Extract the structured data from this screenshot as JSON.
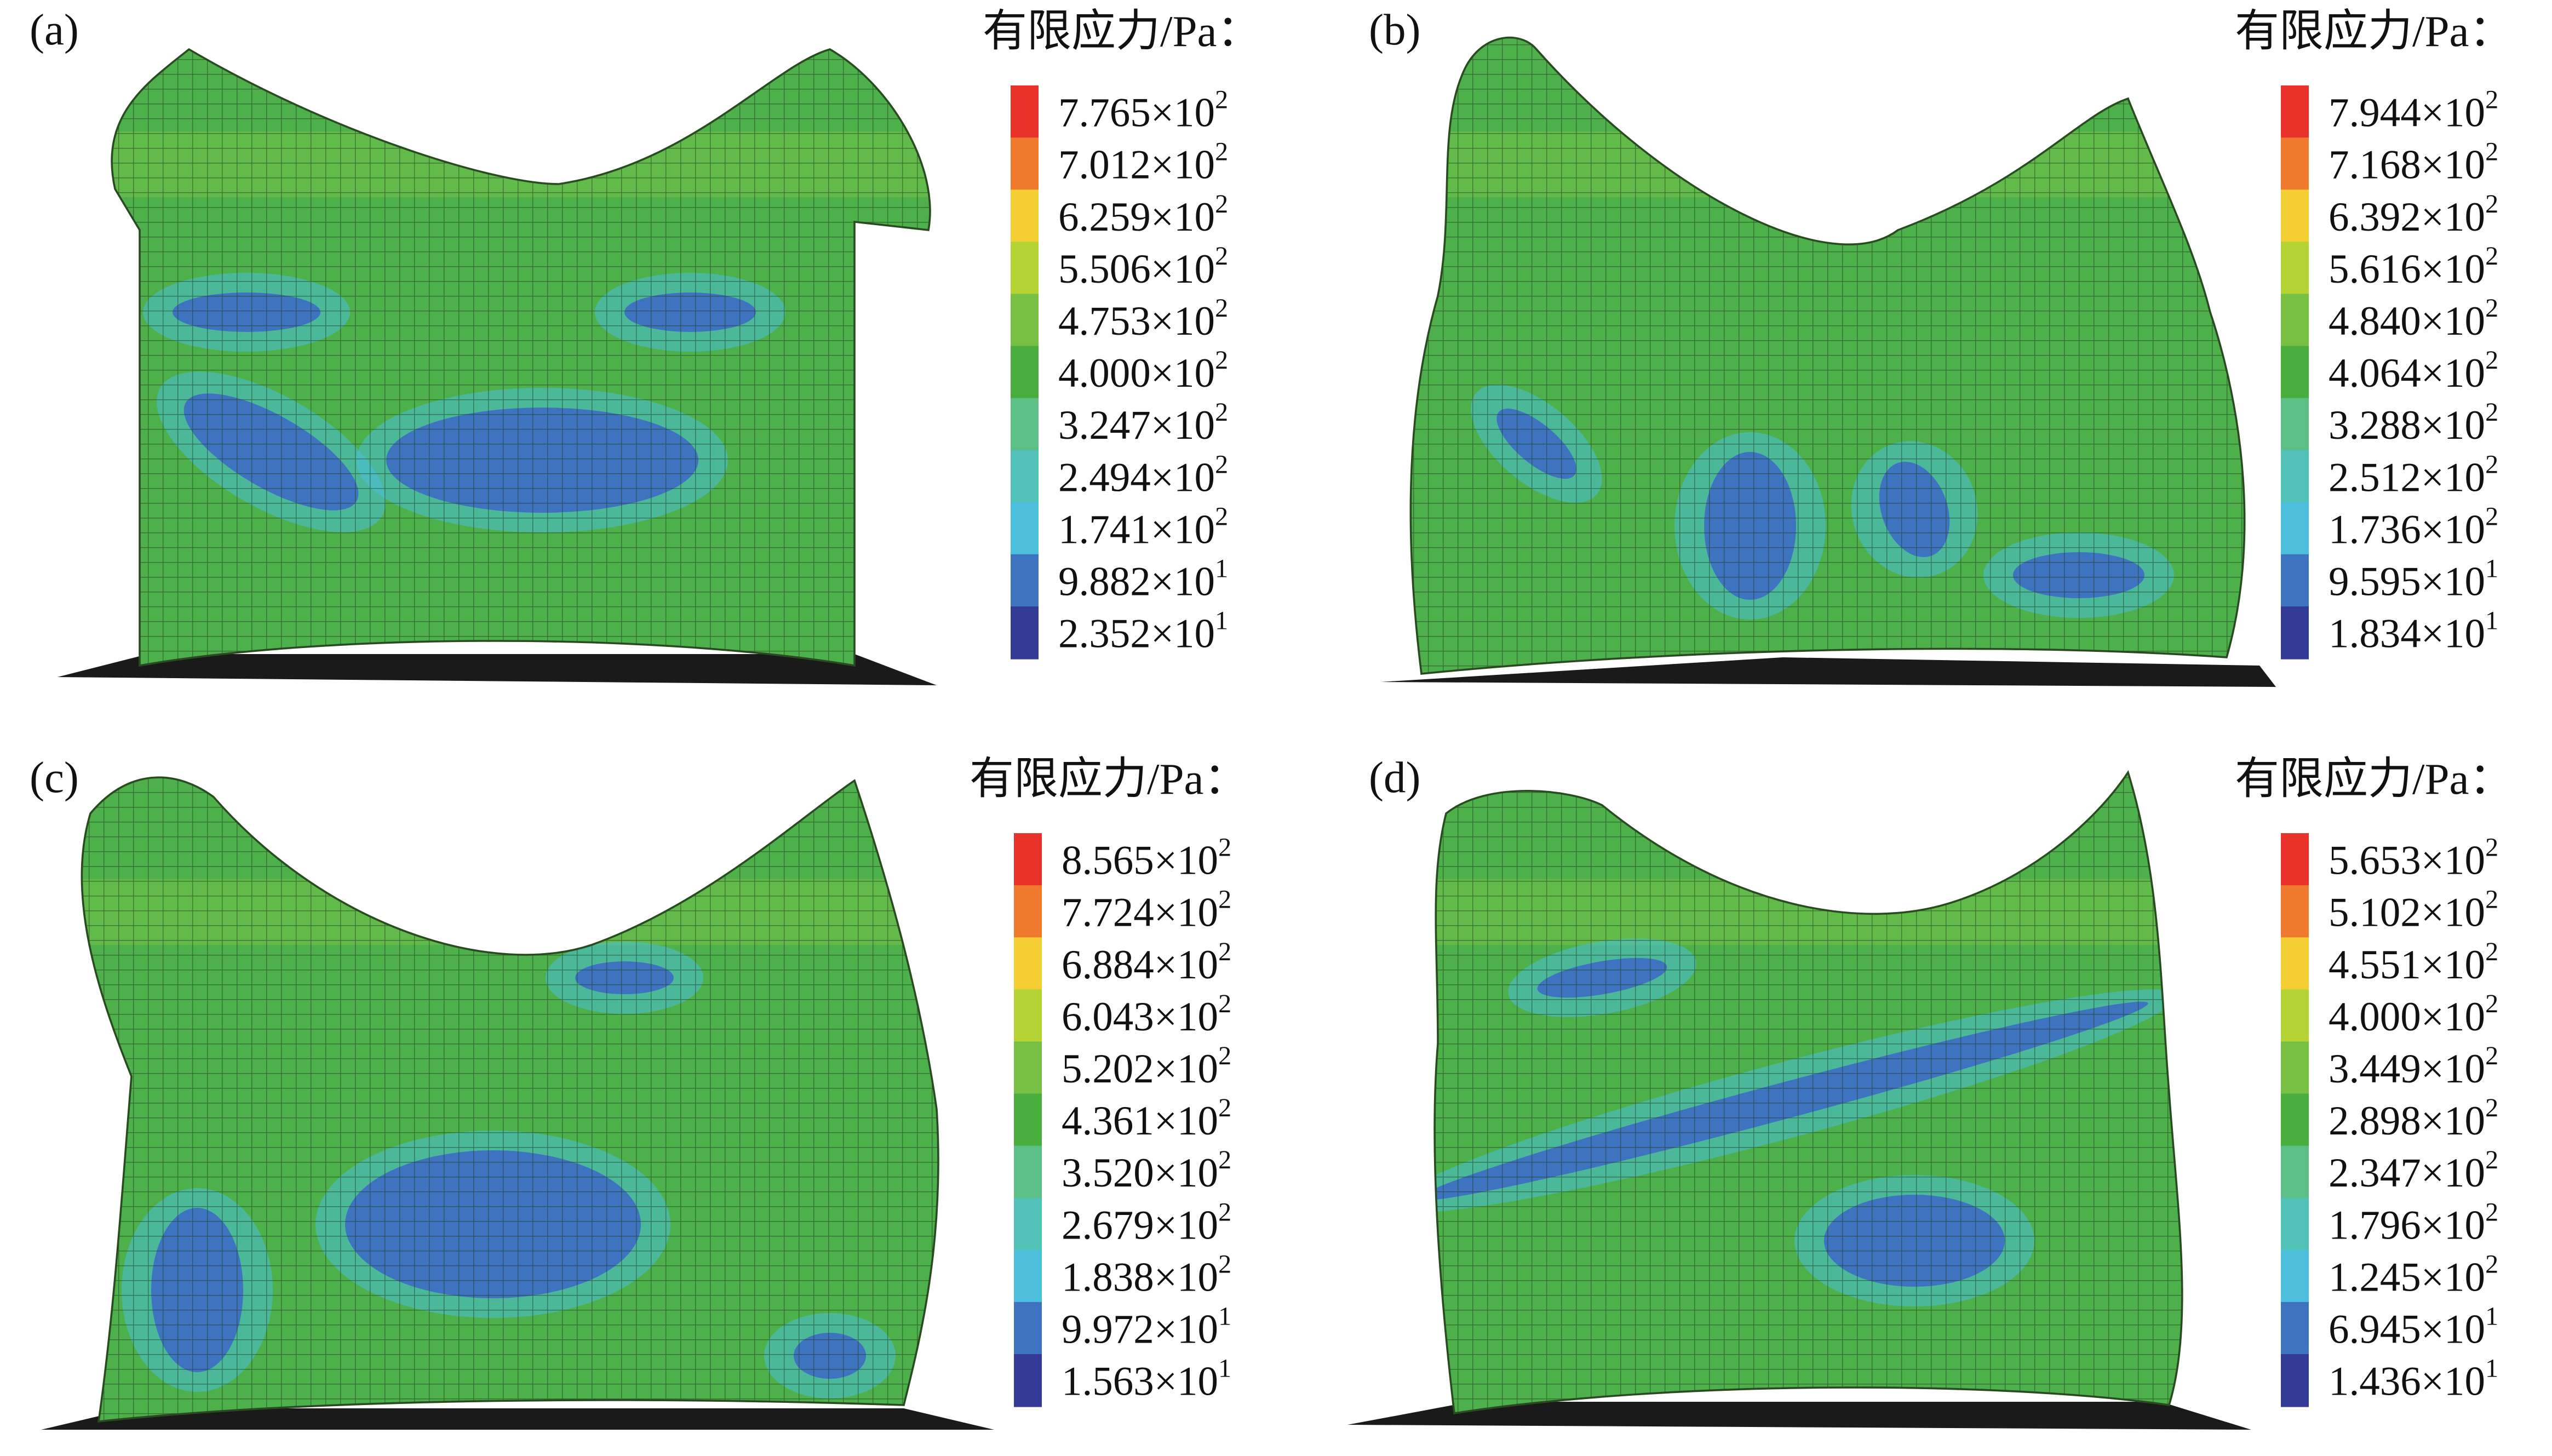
{
  "legend_colors": [
    "#e8322a",
    "#ef7a2e",
    "#f3cf33",
    "#b5d334",
    "#78c043",
    "#4aae3f",
    "#5cbf86",
    "#52c2b8",
    "#4bbfdc",
    "#3e74bf",
    "#333b96"
  ],
  "panels": [
    {
      "label": "(a)",
      "legend_title": "有限应力/Pa：",
      "legend": [
        {
          "text": "7.765×10",
          "sup": "2"
        },
        {
          "text": "7.012×10",
          "sup": "2"
        },
        {
          "text": "6.259×10",
          "sup": "2"
        },
        {
          "text": "5.506×10",
          "sup": "2"
        },
        {
          "text": "4.753×10",
          "sup": "2"
        },
        {
          "text": "4.000×10",
          "sup": "2"
        },
        {
          "text": "3.247×10",
          "sup": "2"
        },
        {
          "text": "2.494×10",
          "sup": "2"
        },
        {
          "text": "1.741×10",
          "sup": "2"
        },
        {
          "text": "9.882×10",
          "sup": "1"
        },
        {
          "text": "2.352×10",
          "sup": "1"
        }
      ]
    },
    {
      "label": "(b)",
      "legend_title": "有限应力/Pa：",
      "legend": [
        {
          "text": "7.944×10",
          "sup": "2"
        },
        {
          "text": "7.168×10",
          "sup": "2"
        },
        {
          "text": "6.392×10",
          "sup": "2"
        },
        {
          "text": "5.616×10",
          "sup": "2"
        },
        {
          "text": "4.840×10",
          "sup": "2"
        },
        {
          "text": "4.064×10",
          "sup": "2"
        },
        {
          "text": "3.288×10",
          "sup": "2"
        },
        {
          "text": "2.512×10",
          "sup": "2"
        },
        {
          "text": "1.736×10",
          "sup": "2"
        },
        {
          "text": "9.595×10",
          "sup": "1"
        },
        {
          "text": "1.834×10",
          "sup": "1"
        }
      ]
    },
    {
      "label": "(c)",
      "legend_title": "有限应力/Pa：",
      "legend": [
        {
          "text": "8.565×10",
          "sup": "2"
        },
        {
          "text": "7.724×10",
          "sup": "2"
        },
        {
          "text": "6.884×10",
          "sup": "2"
        },
        {
          "text": "6.043×10",
          "sup": "2"
        },
        {
          "text": "5.202×10",
          "sup": "2"
        },
        {
          "text": "4.361×10",
          "sup": "2"
        },
        {
          "text": "3.520×10",
          "sup": "2"
        },
        {
          "text": "2.679×10",
          "sup": "2"
        },
        {
          "text": "1.838×10",
          "sup": "2"
        },
        {
          "text": "9.972×10",
          "sup": "1"
        },
        {
          "text": "1.563×10",
          "sup": "1"
        }
      ]
    },
    {
      "label": "(d)",
      "legend_title": "有限应力/Pa：",
      "legend": [
        {
          "text": "5.653×10",
          "sup": "2"
        },
        {
          "text": "5.102×10",
          "sup": "2"
        },
        {
          "text": "4.551×10",
          "sup": "2"
        },
        {
          "text": "4.000×10",
          "sup": "2"
        },
        {
          "text": "3.449×10",
          "sup": "2"
        },
        {
          "text": "2.898×10",
          "sup": "2"
        },
        {
          "text": "2.347×10",
          "sup": "2"
        },
        {
          "text": "1.796×10",
          "sup": "2"
        },
        {
          "text": "1.245×10",
          "sup": "2"
        },
        {
          "text": "6.945×10",
          "sup": "1"
        },
        {
          "text": "1.436×10",
          "sup": "1"
        }
      ]
    }
  ]
}
